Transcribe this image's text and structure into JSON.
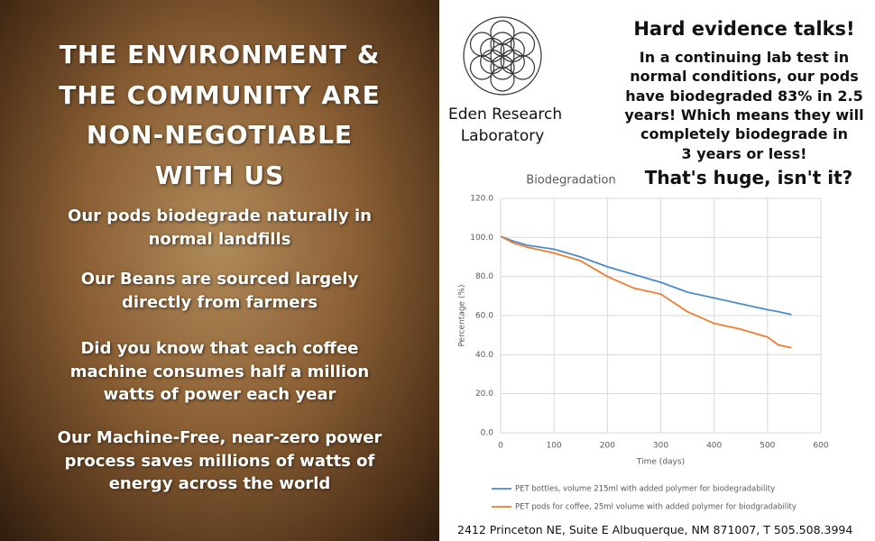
{
  "left": {
    "title_lines": [
      "THE ENVIRONMENT &",
      "THE COMMUNITY ARE",
      "NON-NEGOTIABLE",
      "WITH US"
    ],
    "points": [
      [
        "Our pods biodegrade naturally in",
        "normal landfills"
      ],
      [
        "Our Beans are sourced largely",
        "directly from farmers"
      ],
      [
        "Did you know that each coffee",
        "machine consumes half a million",
        "watts of power each year"
      ],
      [
        "Our Machine-Free, near-zero power",
        "process saves millions of watts of",
        "energy across the world"
      ]
    ]
  },
  "header": {
    "lab_lines": [
      "Eden Research",
      "Laboratory"
    ],
    "headline": "Hard evidence talks!",
    "body_lines": [
      "In a continuing lab test in",
      "normal conditions, our pods",
      "have biodegraded 83% in 2.5",
      "years! Which means they will",
      "completely biodegrade in",
      "3 years or less!"
    ],
    "tagline": "That's huge, isn't it?"
  },
  "footer": "2412 Princeton NE, Suite E Albuquerque, NM 871007,  T 505.508.3994",
  "chart_data": {
    "type": "line",
    "title": "Biodegradation",
    "x_label": "Time (days)",
    "y_label": "Percentage (%)",
    "x": [
      0,
      25,
      50,
      100,
      150,
      200,
      250,
      300,
      350,
      400,
      450,
      500,
      520,
      545
    ],
    "series": [
      {
        "name": "PET bottles, volume 215ml with added polymer for biodegradability",
        "color": "#4a8cc8",
        "values": [
          100.5,
          98,
          96,
          94,
          90,
          85,
          81,
          77,
          72,
          69,
          66,
          63,
          62,
          60.5
        ]
      },
      {
        "name": "PET pods for coffee, 25ml volume with added polymer for biodgradability",
        "color": "#ed7d31",
        "values": [
          100.5,
          97,
          95,
          92,
          88,
          80,
          74,
          71,
          62,
          56,
          53,
          49,
          45,
          43.5
        ]
      }
    ],
    "xlim": [
      0,
      600
    ],
    "xticks": [
      0,
      100,
      200,
      300,
      400,
      500,
      600
    ],
    "ylim": [
      0,
      120
    ],
    "yticks": [
      {
        "value": 0,
        "label": "0.0"
      },
      {
        "value": 20,
        "label": "20.0"
      },
      {
        "value": 40,
        "label": "40.0"
      },
      {
        "value": 60,
        "label": "60.0"
      },
      {
        "value": 80,
        "label": "80.0"
      },
      {
        "value": 100,
        "label": "100.0"
      },
      {
        "value": 120,
        "label": "120.0"
      }
    ],
    "grid": true
  }
}
